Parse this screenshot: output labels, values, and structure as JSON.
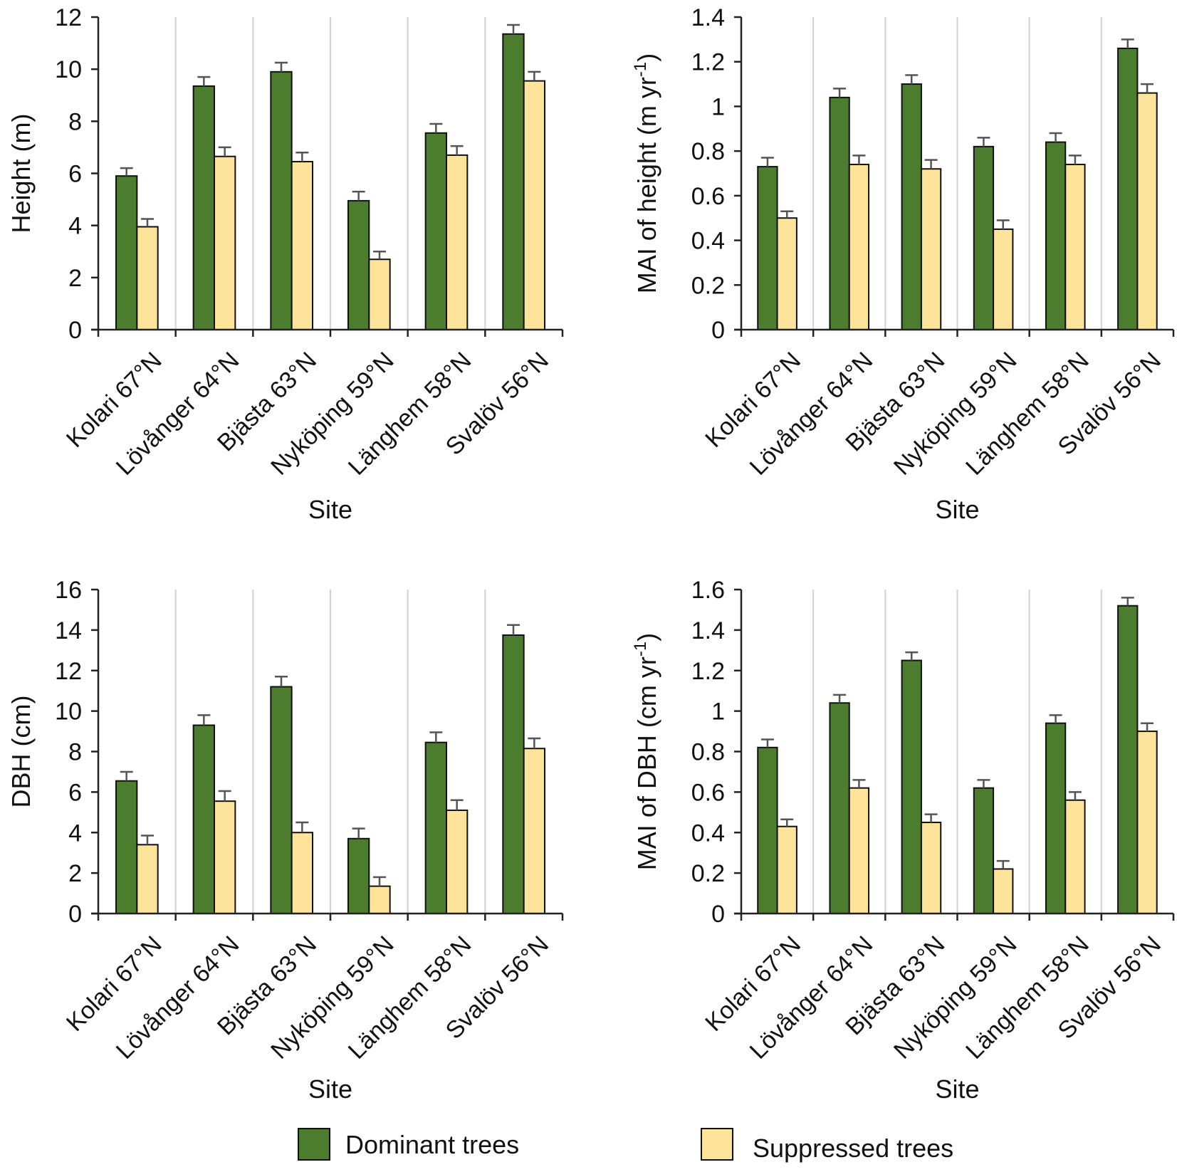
{
  "colors": {
    "dominant": "#4c7d2e",
    "suppressed": "#fde49a",
    "axis": "#222222",
    "errorbar": "#555555",
    "separator": "#d2d2d2"
  },
  "legend": {
    "dominant_label": "Dominant trees",
    "suppressed_label": "Suppressed trees"
  },
  "chart_data": [
    {
      "type": "bar",
      "id": "height",
      "title": "",
      "xlabel": "Site",
      "ylabel": "Height (m)",
      "ylim": [
        0,
        12
      ],
      "yticks": [
        0,
        2,
        4,
        6,
        8,
        10,
        12
      ],
      "ytick_labels": [
        "0",
        "2",
        "4",
        "6",
        "8",
        "10",
        "12"
      ],
      "categories": [
        "Kolari 67°N",
        "Lövånger 64°N",
        "Bjästa 63°N",
        "Nyköping 59°N",
        "Länghem 58°N",
        "Svalöv 56°N"
      ],
      "series": [
        {
          "name": "Dominant trees",
          "values": [
            5.9,
            9.35,
            9.9,
            4.95,
            7.55,
            11.35
          ],
          "errors": [
            0.3,
            0.35,
            0.35,
            0.35,
            0.35,
            0.35
          ]
        },
        {
          "name": "Suppressed trees",
          "values": [
            3.95,
            6.65,
            6.45,
            2.7,
            6.7,
            9.55
          ],
          "errors": [
            0.3,
            0.35,
            0.35,
            0.3,
            0.35,
            0.35
          ]
        }
      ]
    },
    {
      "type": "bar",
      "id": "mai-height",
      "title": "",
      "xlabel": "Site",
      "ylabel": "MAI of height (m yr",
      "ylabel_sup": "-1",
      "ylabel_end": ")",
      "ylim": [
        0,
        1.4
      ],
      "yticks": [
        0,
        0.2,
        0.4,
        0.6,
        0.8,
        1.0,
        1.2,
        1.4
      ],
      "ytick_labels": [
        "0",
        "0.2",
        "0.4",
        "0.6",
        "0.8",
        "1",
        "1.2",
        "1.4"
      ],
      "categories": [
        "Kolari 67°N",
        "Lövånger 64°N",
        "Bjästa 63°N",
        "Nyköping 59°N",
        "Länghem 58°N",
        "Svalöv 56°N"
      ],
      "series": [
        {
          "name": "Dominant trees",
          "values": [
            0.73,
            1.04,
            1.1,
            0.82,
            0.84,
            1.26
          ],
          "errors": [
            0.04,
            0.04,
            0.04,
            0.04,
            0.04,
            0.04
          ]
        },
        {
          "name": "Suppressed trees",
          "values": [
            0.5,
            0.74,
            0.72,
            0.45,
            0.74,
            1.06
          ],
          "errors": [
            0.03,
            0.04,
            0.04,
            0.04,
            0.04,
            0.04
          ]
        }
      ]
    },
    {
      "type": "bar",
      "id": "dbh",
      "title": "",
      "xlabel": "Site",
      "ylabel": "DBH (cm)",
      "ylim": [
        0,
        16
      ],
      "yticks": [
        0,
        2,
        4,
        6,
        8,
        10,
        12,
        14,
        16
      ],
      "ytick_labels": [
        "0",
        "2",
        "4",
        "6",
        "8",
        "10",
        "12",
        "14",
        "16"
      ],
      "categories": [
        "Kolari 67°N",
        "Lövånger 64°N",
        "Bjästa 63°N",
        "Nyköping 59°N",
        "Länghem 58°N",
        "Svalöv 56°N"
      ],
      "series": [
        {
          "name": "Dominant trees",
          "values": [
            6.55,
            9.3,
            11.2,
            3.7,
            8.45,
            13.75
          ],
          "errors": [
            0.45,
            0.5,
            0.5,
            0.5,
            0.5,
            0.5
          ]
        },
        {
          "name": "Suppressed trees",
          "values": [
            3.4,
            5.55,
            4.0,
            1.35,
            5.1,
            8.15
          ],
          "errors": [
            0.45,
            0.5,
            0.5,
            0.45,
            0.5,
            0.5
          ]
        }
      ]
    },
    {
      "type": "bar",
      "id": "mai-dbh",
      "title": "",
      "xlabel": "Site",
      "ylabel": "MAI of DBH (cm yr",
      "ylabel_sup": "-1",
      "ylabel_end": ")",
      "ylim": [
        0,
        1.6
      ],
      "yticks": [
        0,
        0.2,
        0.4,
        0.6,
        0.8,
        1.0,
        1.2,
        1.4,
        1.6
      ],
      "ytick_labels": [
        "0",
        "0.2",
        "0.4",
        "0.6",
        "0.8",
        "1",
        "1.2",
        "1.4",
        "1.6"
      ],
      "categories": [
        "Kolari 67°N",
        "Lövånger 64°N",
        "Bjästa 63°N",
        "Nyköping 59°N",
        "Länghem 58°N",
        "Svalöv 56°N"
      ],
      "series": [
        {
          "name": "Dominant trees",
          "values": [
            0.82,
            1.04,
            1.25,
            0.62,
            0.94,
            1.52
          ],
          "errors": [
            0.04,
            0.04,
            0.04,
            0.04,
            0.04,
            0.04
          ]
        },
        {
          "name": "Suppressed trees",
          "values": [
            0.43,
            0.62,
            0.45,
            0.22,
            0.56,
            0.9
          ],
          "errors": [
            0.035,
            0.04,
            0.04,
            0.04,
            0.04,
            0.04
          ]
        }
      ]
    }
  ]
}
